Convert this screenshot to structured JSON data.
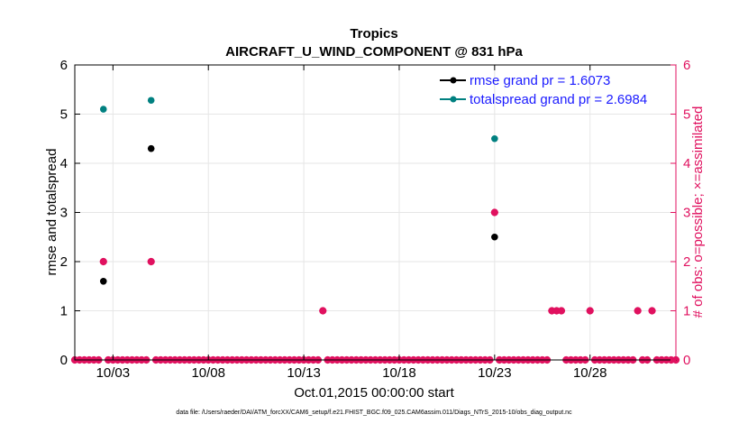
{
  "chart_data": {
    "type": "scatter",
    "title": "Tropics",
    "subtitle": "AIRCRAFT_U_WIND_COMPONENT @ 831 hPa",
    "xlabel": "Oct.01,2015 00:00:00 start",
    "ylabel_left": "rmse and totalspread",
    "ylabel_right": "# of obs: o=possible; ×=assimilated",
    "footer": "data file: /Users/raeder/DAI/ATM_forcXX/CAM6_setup/f.e21.FHIST_BGC.f09_025.CAM6assim.011/Diags_NTrS_2015-10/obs_diag_output.nc",
    "xlim": [
      1,
      32.5
    ],
    "ylim_left": [
      0,
      6
    ],
    "ylim_right": [
      0,
      6
    ],
    "x_ticks": [
      3,
      8,
      13,
      18,
      23,
      28
    ],
    "x_tick_labels": [
      "10/03",
      "10/08",
      "10/13",
      "10/18",
      "10/23",
      "10/28"
    ],
    "y_ticks": [
      0,
      1,
      2,
      3,
      4,
      5,
      6
    ],
    "y_tick_labels": [
      "0",
      "1",
      "2",
      "3",
      "4",
      "5",
      "6"
    ],
    "grid": true,
    "legend_position": "top-right",
    "colors": {
      "rmse": "#000000",
      "totalspread": "#008080",
      "obs": "#e0115f",
      "right_axis": "#e0115f",
      "grid": "#e6e6e6",
      "axis": "#000000",
      "legend_text": "#1a1aff"
    },
    "series": [
      {
        "name": "rmse grand pr = 1.6073",
        "key": "rmse",
        "x": [
          2.5,
          5.0,
          23.0
        ],
        "y": [
          1.6,
          4.3,
          2.5
        ]
      },
      {
        "name": "totalspread grand pr = 2.6984",
        "key": "totalspread",
        "x": [
          2.5,
          5.0,
          23.0
        ],
        "y": [
          5.1,
          5.28,
          4.5
        ]
      }
    ],
    "obs_counts": {
      "x_start": 1.0,
      "x_step": 0.25,
      "count": 127,
      "nonzero": [
        {
          "x": 2.5,
          "possible": 2,
          "assimilated": 2
        },
        {
          "x": 5.0,
          "possible": 2,
          "assimilated": 2
        },
        {
          "x": 14.0,
          "possible": 1,
          "assimilated": 1
        },
        {
          "x": 23.0,
          "possible": 3,
          "assimilated": 3
        },
        {
          "x": 26.0,
          "possible": 1,
          "assimilated": 1
        },
        {
          "x": 26.25,
          "possible": 1,
          "assimilated": 1
        },
        {
          "x": 26.5,
          "possible": 1,
          "assimilated": 1
        },
        {
          "x": 28.0,
          "possible": 1,
          "assimilated": 1
        },
        {
          "x": 30.5,
          "possible": 1,
          "assimilated": 1
        },
        {
          "x": 31.25,
          "possible": 1,
          "assimilated": 1
        }
      ]
    }
  }
}
